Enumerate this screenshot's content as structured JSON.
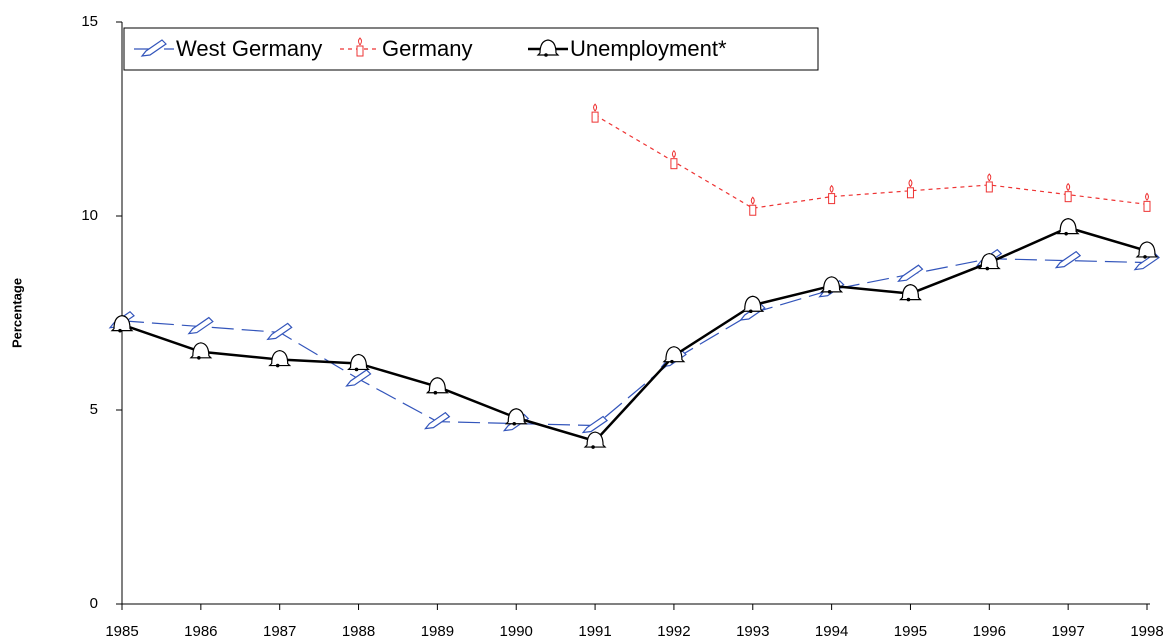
{
  "chart_data": {
    "type": "line",
    "y_label": "Percentage",
    "categories": [
      "1985",
      "1986",
      "1987",
      "1988",
      "1989",
      "1990",
      "1991",
      "1992",
      "1993",
      "1994",
      "1995",
      "1996",
      "1997",
      "1998"
    ],
    "ylim": [
      0,
      15
    ],
    "yticks": [
      0,
      5,
      10,
      15
    ],
    "legend": "top-left",
    "series": [
      {
        "name": "West Germany",
        "color": "#3355bb",
        "dash": "22 8",
        "width": 1.2,
        "marker": "pencil",
        "values": [
          7.3,
          7.15,
          7.0,
          5.8,
          4.7,
          4.65,
          4.6,
          6.3,
          7.5,
          8.1,
          8.5,
          8.9,
          8.85,
          8.8
        ]
      },
      {
        "name": "Germany",
        "color": "#ee3333",
        "dash": "4 4",
        "width": 1.2,
        "marker": "candle",
        "values": [
          null,
          null,
          null,
          null,
          null,
          null,
          12.6,
          11.4,
          10.2,
          10.5,
          10.65,
          10.8,
          10.55,
          10.3
        ]
      },
      {
        "name": "Unemployment*",
        "color": "#000000",
        "dash": "none",
        "width": 2.5,
        "marker": "bell",
        "values": [
          7.2,
          6.5,
          6.3,
          6.2,
          5.6,
          4.8,
          4.2,
          6.4,
          7.7,
          8.2,
          8.0,
          8.8,
          9.7,
          9.1
        ]
      }
    ]
  }
}
